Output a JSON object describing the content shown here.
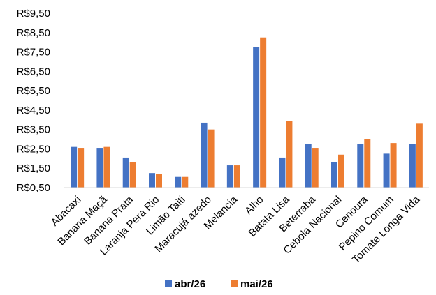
{
  "chart_data": {
    "type": "bar",
    "title": "",
    "xlabel": "",
    "ylabel": "",
    "ylim": [
      0.5,
      9.5
    ],
    "y_ticks": [
      "R$0,50",
      "R$1,50",
      "R$2,50",
      "R$3,50",
      "R$4,50",
      "R$5,50",
      "R$6,50",
      "R$7,50",
      "R$8,50",
      "R$9,50"
    ],
    "y_tick_values": [
      0.5,
      1.5,
      2.5,
      3.5,
      4.5,
      5.5,
      6.5,
      7.5,
      8.5,
      9.5
    ],
    "categories": [
      "Abacaxi",
      "Banana Maçã",
      "Banana Prata",
      "Laranja Pera Rio",
      "Limão Taiti",
      "Maracujá azedo",
      "Melancia",
      "Alho",
      "Batata Lisa",
      "Beterraba",
      "Cebola Nacional",
      "Cenoura",
      "Pepino Comum",
      "Tomate Longa Vida"
    ],
    "series": [
      {
        "name": "abr/26",
        "color": "#4472C4",
        "values": [
          2.6,
          2.55,
          2.05,
          1.25,
          1.05,
          3.85,
          1.65,
          7.75,
          2.05,
          2.75,
          1.8,
          2.75,
          2.25,
          2.75
        ]
      },
      {
        "name": "mai/26",
        "color": "#ED7D31",
        "values": [
          2.55,
          2.6,
          1.8,
          1.2,
          1.05,
          3.5,
          1.65,
          8.25,
          3.95,
          2.55,
          2.2,
          3.0,
          2.8,
          3.8
        ]
      }
    ],
    "grid": false,
    "legend_position": "bottom"
  }
}
